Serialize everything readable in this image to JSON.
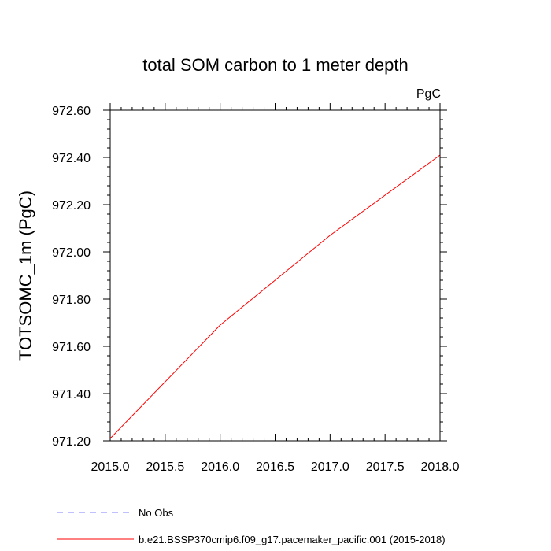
{
  "chart_data": {
    "type": "line",
    "title": "total SOM carbon to 1 meter depth",
    "units": "PgC",
    "xlabel": "",
    "ylabel": "TOTSOMC_1m  (PgC)",
    "xlim": [
      2015.0,
      2018.0
    ],
    "ylim": [
      971.2,
      972.6
    ],
    "x_ticks": [
      "2015.0",
      "2015.5",
      "2016.0",
      "2016.5",
      "2017.0",
      "2017.5",
      "2018.0"
    ],
    "y_ticks": [
      "971.20",
      "971.40",
      "971.60",
      "971.80",
      "972.00",
      "972.20",
      "972.40",
      "972.60"
    ],
    "grid": false,
    "legend_position": "bottom",
    "series": [
      {
        "name": "b.e21.BSSP370cmip6.f09_g17.pacemaker_pacific.001 (2015-2018)",
        "color": "#ff0000",
        "style": "solid",
        "x": [
          2015.0,
          2016.0,
          2017.0,
          2018.0
        ],
        "y": [
          971.21,
          971.69,
          972.07,
          972.41
        ]
      },
      {
        "name": "No Obs",
        "color": "#8080ff",
        "style": "dashed",
        "x": [],
        "y": []
      }
    ]
  }
}
